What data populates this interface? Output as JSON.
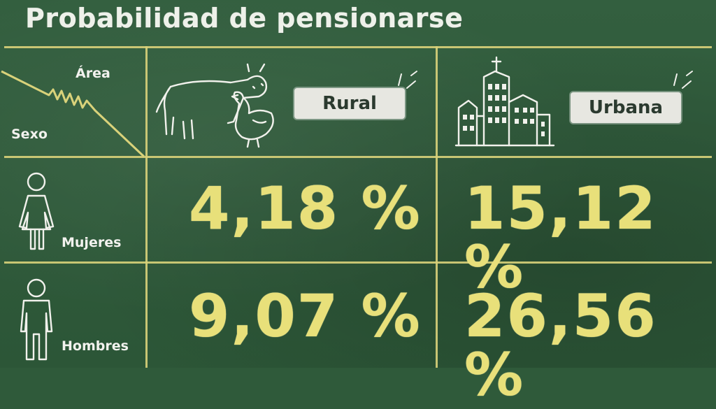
{
  "title": "Probabilidad de pensionarse",
  "header": {
    "area_label": "Área",
    "sexo_label": "Sexo"
  },
  "columns": [
    "Rural",
    "Urbana"
  ],
  "rows": [
    {
      "label": "Mujeres",
      "values": [
        "4,18 %",
        "15,12 %"
      ]
    },
    {
      "label": "Hombres",
      "values": [
        "9,07 %",
        "26,56 %"
      ]
    }
  ],
  "icons": {
    "rural": "cow-and-hen-icon",
    "urbana": "city-buildings-icon",
    "mujeres": "woman-icon",
    "hombres": "man-icon"
  },
  "colors": {
    "background": "#2f5a3a",
    "lines": "#d9d27a",
    "values": "#e8e07a",
    "chalk": "#f1f1ec"
  },
  "chart_data": {
    "type": "table",
    "title": "Probabilidad de pensionarse",
    "row_header": "Sexo",
    "column_header": "Área",
    "columns": [
      "Rural",
      "Urbana"
    ],
    "rows": [
      "Mujeres",
      "Hombres"
    ],
    "unit": "%",
    "values": [
      [
        4.18,
        15.12
      ],
      [
        9.07,
        26.56
      ]
    ]
  }
}
